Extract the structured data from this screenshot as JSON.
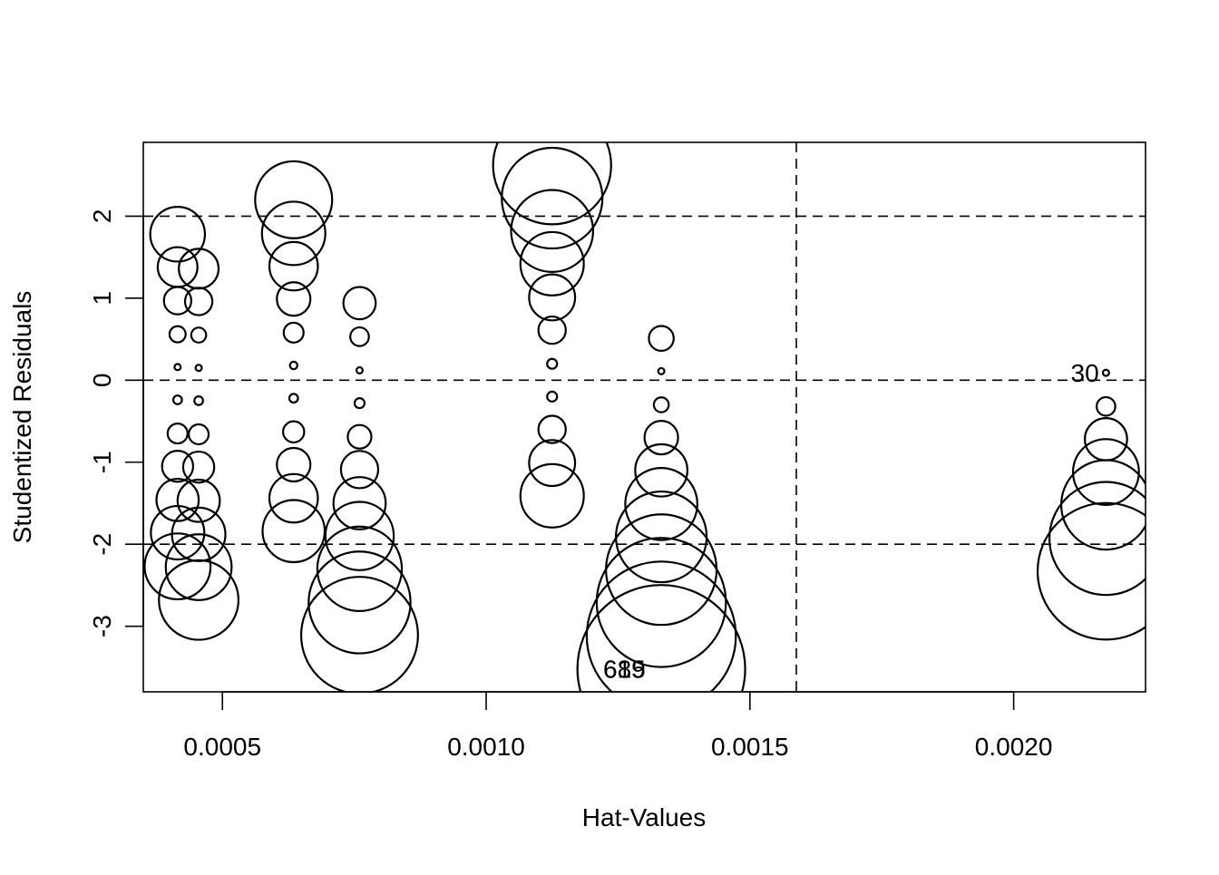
{
  "chart_data": {
    "type": "scatter",
    "title": "",
    "xlabel": "Hat-Values",
    "ylabel": "Studentized Residuals",
    "xlim": [
      0.00035,
      0.00225
    ],
    "ylim": [
      -3.8,
      2.9
    ],
    "x_ticks": [
      0.0005,
      0.001,
      0.0015,
      0.002
    ],
    "x_tick_labels": [
      "0.0005",
      "0.0010",
      "0.0015",
      "0.0020"
    ],
    "y_ticks": [
      -3,
      -2,
      -1,
      0,
      1,
      2
    ],
    "y_tick_labels": [
      "-3",
      "-2",
      "-1",
      "0",
      "1",
      "2"
    ],
    "hlines": [
      -2,
      0,
      2
    ],
    "vlines": [
      0.001588
    ],
    "grid": false,
    "legend": "none",
    "marker": "open circle, area proportional to Cook's distance",
    "points": [
      {
        "x": 0.000415,
        "y": 1.78,
        "r": 2.2
      },
      {
        "x": 0.000415,
        "y": 1.38,
        "r": 1.6
      },
      {
        "x": 0.000415,
        "y": 0.97,
        "r": 1.1
      },
      {
        "x": 0.000415,
        "y": 0.56,
        "r": 0.65
      },
      {
        "x": 0.000415,
        "y": 0.16,
        "r": 0.25
      },
      {
        "x": 0.000415,
        "y": -0.24,
        "r": 0.35
      },
      {
        "x": 0.000415,
        "y": -0.65,
        "r": 0.8
      },
      {
        "x": 0.000415,
        "y": -1.05,
        "r": 1.25
      },
      {
        "x": 0.000415,
        "y": -1.46,
        "r": 1.7
      },
      {
        "x": 0.000415,
        "y": -1.86,
        "r": 2.15
      },
      {
        "x": 0.000415,
        "y": -2.27,
        "r": 2.65
      },
      {
        "x": 0.000455,
        "y": 1.36,
        "r": 1.6
      },
      {
        "x": 0.000455,
        "y": 0.96,
        "r": 1.1
      },
      {
        "x": 0.000455,
        "y": 0.55,
        "r": 0.6
      },
      {
        "x": 0.000455,
        "y": 0.15,
        "r": 0.25
      },
      {
        "x": 0.000455,
        "y": -0.25,
        "r": 0.35
      },
      {
        "x": 0.000455,
        "y": -0.66,
        "r": 0.8
      },
      {
        "x": 0.000455,
        "y": -1.06,
        "r": 1.25
      },
      {
        "x": 0.000455,
        "y": -1.47,
        "r": 1.7
      },
      {
        "x": 0.000455,
        "y": -1.88,
        "r": 2.15
      },
      {
        "x": 0.000455,
        "y": -2.28,
        "r": 2.65
      },
      {
        "x": 0.000455,
        "y": -2.68,
        "r": 3.2
      },
      {
        "x": 0.000635,
        "y": 2.2,
        "r": 3.1
      },
      {
        "x": 0.000635,
        "y": 1.79,
        "r": 2.55
      },
      {
        "x": 0.000635,
        "y": 1.39,
        "r": 1.95
      },
      {
        "x": 0.000635,
        "y": 0.99,
        "r": 1.35
      },
      {
        "x": 0.000635,
        "y": 0.58,
        "r": 0.8
      },
      {
        "x": 0.000635,
        "y": 0.18,
        "r": 0.3
      },
      {
        "x": 0.000635,
        "y": -0.22,
        "r": 0.35
      },
      {
        "x": 0.000635,
        "y": -0.63,
        "r": 0.85
      },
      {
        "x": 0.000635,
        "y": -1.03,
        "r": 1.35
      },
      {
        "x": 0.000635,
        "y": -1.44,
        "r": 1.95
      },
      {
        "x": 0.000635,
        "y": -1.84,
        "r": 2.5
      },
      {
        "x": 0.00076,
        "y": 0.94,
        "r": 1.3
      },
      {
        "x": 0.00076,
        "y": 0.53,
        "r": 0.75
      },
      {
        "x": 0.00076,
        "y": 0.12,
        "r": 0.25
      },
      {
        "x": 0.00076,
        "y": -0.28,
        "r": 0.4
      },
      {
        "x": 0.00076,
        "y": -0.69,
        "r": 0.95
      },
      {
        "x": 0.00076,
        "y": -1.09,
        "r": 1.5
      },
      {
        "x": 0.00076,
        "y": -1.5,
        "r": 2.1
      },
      {
        "x": 0.00076,
        "y": -1.9,
        "r": 2.75
      },
      {
        "x": 0.00076,
        "y": -2.3,
        "r": 3.4
      },
      {
        "x": 0.00076,
        "y": -2.71,
        "r": 4.1
      },
      {
        "x": 0.00076,
        "y": -3.11,
        "r": 4.7
      },
      {
        "x": 0.001125,
        "y": 2.62,
        "r": 4.75
      },
      {
        "x": 0.001125,
        "y": 2.22,
        "r": 4.05
      },
      {
        "x": 0.001125,
        "y": 1.82,
        "r": 3.3
      },
      {
        "x": 0.001125,
        "y": 1.42,
        "r": 2.55
      },
      {
        "x": 0.001125,
        "y": 1.01,
        "r": 1.85
      },
      {
        "x": 0.001125,
        "y": 0.61,
        "r": 1.1
      },
      {
        "x": 0.001125,
        "y": 0.2,
        "r": 0.4
      },
      {
        "x": 0.001125,
        "y": -0.2,
        "r": 0.4
      },
      {
        "x": 0.001125,
        "y": -0.6,
        "r": 1.1
      },
      {
        "x": 0.001125,
        "y": -1.01,
        "r": 1.85
      },
      {
        "x": 0.001125,
        "y": -1.41,
        "r": 2.55
      },
      {
        "x": 0.001332,
        "y": 0.51,
        "r": 1.0
      },
      {
        "x": 0.001332,
        "y": 0.11,
        "r": 0.25
      },
      {
        "x": 0.001332,
        "y": -0.3,
        "r": 0.6
      },
      {
        "x": 0.001332,
        "y": -0.7,
        "r": 1.35
      },
      {
        "x": 0.001332,
        "y": -1.1,
        "r": 2.1
      },
      {
        "x": 0.001332,
        "y": -1.51,
        "r": 2.9
      },
      {
        "x": 0.001332,
        "y": -1.91,
        "r": 3.65
      },
      {
        "x": 0.001332,
        "y": -2.31,
        "r": 4.45
      },
      {
        "x": 0.001332,
        "y": -2.71,
        "r": 5.2
      },
      {
        "x": 0.001332,
        "y": -3.12,
        "r": 6.0
      },
      {
        "x": 0.001332,
        "y": -3.52,
        "r": 6.75
      },
      {
        "x": 0.002175,
        "y": 0.09,
        "r": 0.25
      },
      {
        "x": 0.002175,
        "y": -0.32,
        "r": 0.75
      },
      {
        "x": 0.002175,
        "y": -0.72,
        "r": 1.7
      },
      {
        "x": 0.002175,
        "y": -1.12,
        "r": 2.65
      },
      {
        "x": 0.002175,
        "y": -1.52,
        "r": 3.6
      },
      {
        "x": 0.002175,
        "y": -1.93,
        "r": 4.55
      },
      {
        "x": 0.002175,
        "y": -2.33,
        "r": 5.5
      }
    ],
    "annotations": [
      {
        "text": "30",
        "x": 0.002135,
        "y": 0.09
      },
      {
        "text": "615",
        "x": 0.001262,
        "y": -3.52
      },
      {
        "text": "689",
        "x": 0.001262,
        "y": -3.52
      }
    ]
  }
}
